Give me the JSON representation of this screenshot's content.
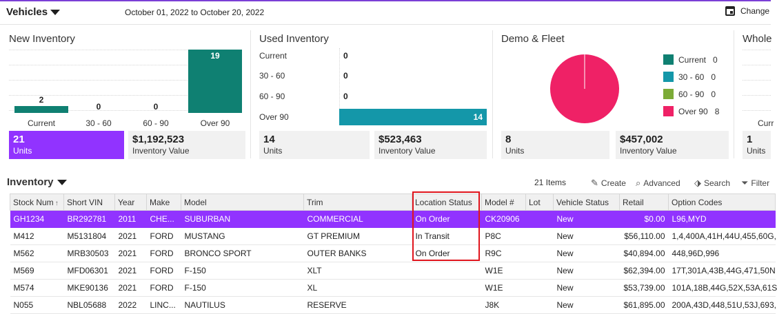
{
  "topbar": {
    "title": "Vehicles",
    "date_range": "October 01, 2022 to October 20, 2022",
    "change_label": "Change",
    "calendar_icon": "calendar-icon"
  },
  "colors": {
    "accent": "#9133ff",
    "teal": "#0f8072",
    "blue": "#1497a9",
    "green": "#7cab37",
    "pink": "#ef2166",
    "highlight": "#e0141c"
  },
  "new_inventory": {
    "title": "New Inventory",
    "chart_data": {
      "type": "bar",
      "categories": [
        "Current",
        "30 - 60",
        "60 - 90",
        "Over 90"
      ],
      "values": [
        2,
        0,
        0,
        19
      ]
    },
    "units_value": "21",
    "units_label": "Units",
    "inv_value": "$1,192,523",
    "inv_label": "Inventory Value"
  },
  "used_inventory": {
    "title": "Used Inventory",
    "chart_data": {
      "type": "bar",
      "categories": [
        "Current",
        "30 - 60",
        "60 - 90",
        "Over 90"
      ],
      "values": [
        0,
        0,
        0,
        14
      ]
    },
    "units_value": "14",
    "units_label": "Units",
    "inv_value": "$523,463",
    "inv_label": "Inventory Value"
  },
  "demo_fleet": {
    "title": "Demo & Fleet",
    "chart_data": {
      "type": "pie",
      "categories": [
        "Current",
        "30 - 60",
        "60 - 90",
        "Over 90"
      ],
      "values": [
        0,
        0,
        0,
        8
      ]
    },
    "legend": [
      {
        "label": "Current",
        "count": "0",
        "color": "#0f8072"
      },
      {
        "label": "30 - 60",
        "count": "0",
        "color": "#1497a9"
      },
      {
        "label": "60 - 90",
        "count": "0",
        "color": "#7cab37"
      },
      {
        "label": "Over 90",
        "count": "8",
        "color": "#ef2166"
      }
    ],
    "units_value": "8",
    "units_label": "Units",
    "inv_value": "$457,002",
    "inv_label": "Inventory Value"
  },
  "wholesale": {
    "title": "Whole",
    "cat_label": "Curr",
    "units_value": "1",
    "units_label": "Units"
  },
  "inventory": {
    "title": "Inventory",
    "items_count": "21 Items",
    "toolbar": {
      "create": "Create",
      "advanced": "Advanced",
      "search": "Search",
      "filter": "Filter"
    },
    "columns": [
      "Stock Num",
      "Short VIN",
      "Year",
      "Make",
      "Model",
      "Trim",
      "Location Status",
      "Model #",
      "Lot",
      "Vehicle Status",
      "Retail",
      "Option Codes"
    ],
    "rows": [
      [
        "GH1234",
        "BR292781",
        "2011",
        "CHE...",
        "SUBURBAN",
        "COMMERCIAL",
        "On Order",
        "CK20906",
        "",
        "New",
        "$0.00",
        "L96,MYD"
      ],
      [
        "M412",
        "M5131804",
        "2021",
        "FORD",
        "MUSTANG",
        "GT PREMIUM",
        "In Transit",
        "P8C",
        "",
        "New",
        "$56,110.00",
        "1,4,400A,41H,44U,455,60G,"
      ],
      [
        "M562",
        "MRB30503",
        "2021",
        "FORD",
        "BRONCO SPORT",
        "OUTER BANKS",
        "On Order",
        "R9C",
        "",
        "New",
        "$40,894.00",
        "448,96D,996"
      ],
      [
        "M569",
        "MFD06301",
        "2021",
        "FORD",
        "F-150",
        "XLT",
        "",
        "W1E",
        "",
        "New",
        "$62,394.00",
        "17T,301A,43B,44G,471,50N"
      ],
      [
        "M574",
        "MKE90136",
        "2021",
        "FORD",
        "F-150",
        "XL",
        "",
        "W1E",
        "",
        "New",
        "$53,739.00",
        "101A,18B,44G,52X,53A,61S"
      ],
      [
        "N055",
        "NBL05688",
        "2022",
        "LINC...",
        "NAUTILUS",
        "RESERVE",
        "",
        "J8K",
        "",
        "New",
        "$61,895.00",
        "200A,43D,448,51U,53J,693,"
      ]
    ]
  }
}
